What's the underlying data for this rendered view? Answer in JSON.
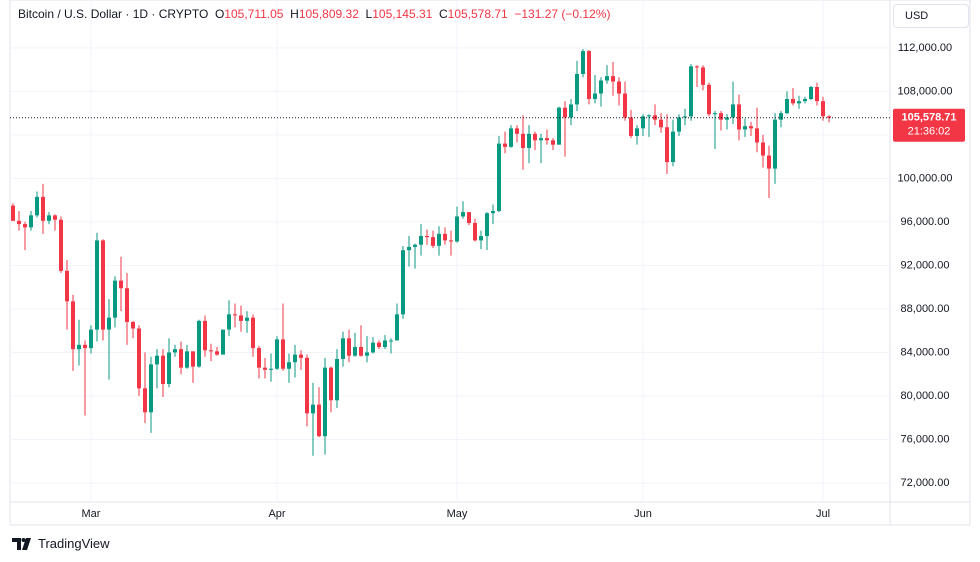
{
  "chart_data": {
    "type": "candlestick",
    "title": "Bitcoin / U.S. Dollar · 1D · CRYPTO",
    "ohlc_header": [
      {
        "label": "O",
        "value": "105,711.05"
      },
      {
        "label": "H",
        "value": "105,809.32"
      },
      {
        "label": "L",
        "value": "105,145.31"
      },
      {
        "label": "C",
        "value": "105,578.71"
      }
    ],
    "change": "−131.27 (−0.12%)",
    "currency": "USD",
    "last_price": {
      "value": 105578.71,
      "label": "105,578.71"
    },
    "countdown": "21:36:02",
    "up_color": "#089981",
    "down_color": "#f23645",
    "grid": true,
    "ylim": [
      70250,
      116400
    ],
    "yticks": [
      {
        "value": 72000,
        "label": "72,000.00"
      },
      {
        "value": 76000,
        "label": "76,000.00"
      },
      {
        "value": 80000,
        "label": "80,000.00"
      },
      {
        "value": 84000,
        "label": "84,000.00"
      },
      {
        "value": 88000,
        "label": "88,000.00"
      },
      {
        "value": 92000,
        "label": "92,000.00"
      },
      {
        "value": 96000,
        "label": "96,000.00"
      },
      {
        "value": 100000,
        "label": "100,000.00"
      },
      {
        "value": 104000,
        "label": "104,000.00"
      },
      {
        "value": 108000,
        "label": "108,000.00"
      },
      {
        "value": 112000,
        "label": "112,000.00"
      }
    ],
    "categories": [
      null,
      null,
      null,
      null,
      null,
      null,
      null,
      null,
      null,
      null,
      null,
      null,
      null,
      "Mar",
      null,
      null,
      null,
      null,
      null,
      null,
      null,
      null,
      null,
      null,
      null,
      null,
      null,
      null,
      null,
      null,
      null,
      null,
      null,
      null,
      null,
      null,
      null,
      null,
      null,
      null,
      null,
      null,
      null,
      null,
      "Apr",
      null,
      null,
      null,
      null,
      null,
      null,
      null,
      null,
      null,
      null,
      null,
      null,
      null,
      null,
      null,
      null,
      null,
      null,
      null,
      null,
      null,
      null,
      null,
      null,
      null,
      null,
      null,
      null,
      null,
      "May",
      null,
      null,
      null,
      null,
      null,
      null,
      null,
      null,
      null,
      null,
      null,
      null,
      null,
      null,
      null,
      null,
      null,
      null,
      null,
      null,
      null,
      null,
      null,
      null,
      null,
      null,
      null,
      null,
      null,
      null,
      "Jun",
      null,
      null,
      null,
      null,
      null,
      null,
      null,
      null,
      null,
      null,
      null,
      null,
      null,
      null,
      null,
      null,
      null,
      null,
      null,
      null,
      null,
      null,
      null,
      null,
      null,
      null,
      null,
      null,
      null,
      "Jul",
      null
    ],
    "open": [
      97500,
      96100,
      95800,
      95500,
      96600,
      98300,
      96100,
      96600,
      96200,
      91500,
      88700,
      84300,
      84700,
      84400,
      86100,
      94300,
      86100,
      87200,
      90600,
      89900,
      86800,
      86200,
      80700,
      78500,
      82900,
      83700,
      81100,
      84000,
      84300,
      82600,
      84100,
      82700,
      86900,
      84200,
      84100,
      83800,
      86100,
      87500,
      87400,
      86900,
      87200,
      84400,
      82600,
      82400,
      82500,
      85200,
      82500,
      83100,
      83800,
      83500,
      78400,
      79200,
      76300,
      82600,
      79600,
      83400,
      85300,
      83700,
      84500,
      83700,
      84000,
      84900,
      84500,
      85100,
      85100,
      87500,
      93400,
      93700,
      93900,
      94700,
      94600,
      93800,
      94900,
      94300,
      94200,
      96500,
      96900,
      95900,
      94300,
      94700,
      96800,
      97000,
      103200,
      102900,
      104600,
      104100,
      102800,
      104100,
      103500,
      103700,
      103500,
      103100,
      106500,
      105600,
      106800,
      109600,
      111700,
      107300,
      107800,
      109000,
      109400,
      108900,
      107800,
      105600,
      103900,
      104600,
      105700,
      105800,
      105400,
      104700,
      101500,
      104300,
      105600,
      105700,
      110300,
      110200,
      108600,
      105900,
      106000,
      105400,
      105600,
      106800,
      104500,
      104800,
      104600,
      103300,
      102100,
      100900,
      105400,
      106000,
      107300,
      106900,
      107100,
      107300,
      108400,
      107100,
      105711.05
    ],
    "high": [
      97700,
      97000,
      96000,
      97000,
      98800,
      99500,
      96900,
      96700,
      96500,
      92500,
      89300,
      87000,
      85100,
      86500,
      95000,
      94400,
      88900,
      91000,
      92800,
      91300,
      86900,
      86500,
      84000,
      83600,
      84300,
      84300,
      85300,
      84700,
      85000,
      84700,
      84100,
      87000,
      87400,
      84800,
      84500,
      86100,
      88800,
      88500,
      88300,
      87800,
      87500,
      84600,
      83500,
      83900,
      85500,
      88500,
      83900,
      84700,
      84200,
      83800,
      81200,
      80800,
      83500,
      82700,
      84300,
      85900,
      86100,
      85800,
      86500,
      85500,
      85400,
      85100,
      85600,
      85300,
      88500,
      93800,
      94700,
      94000,
      95800,
      95300,
      95200,
      95600,
      95500,
      95200,
      97400,
      97900,
      96900,
      96300,
      95200,
      96900,
      97600,
      103900,
      104300,
      104900,
      104900,
      105800,
      104900,
      104300,
      104100,
      104500,
      103700,
      106600,
      107100,
      107300,
      110800,
      111900,
      111800,
      109500,
      109300,
      110400,
      110700,
      109300,
      108900,
      106300,
      104900,
      105900,
      105900,
      106800,
      106000,
      105900,
      105400,
      105900,
      106400,
      110500,
      110400,
      110400,
      108800,
      106200,
      106200,
      105900,
      108900,
      107700,
      105500,
      105200,
      106500,
      104000,
      103000,
      106000,
      106200,
      108000,
      108300,
      107600,
      107500,
      108500,
      108800,
      107500,
      105809.32
    ],
    "low": [
      96100,
      95200,
      93400,
      95200,
      96400,
      94900,
      95800,
      95200,
      91300,
      86100,
      82300,
      82800,
      78200,
      83900,
      85000,
      85100,
      81500,
      86300,
      87800,
      84700,
      85300,
      80000,
      77500,
      76600,
      80700,
      79900,
      80800,
      83600,
      82000,
      82500,
      81200,
      82600,
      83600,
      83200,
      83700,
      83800,
      85500,
      86300,
      85900,
      85800,
      83600,
      81600,
      81600,
      81300,
      82400,
      82300,
      81200,
      81700,
      82400,
      77200,
      74500,
      76200,
      74600,
      78500,
      78900,
      82700,
      83100,
      83600,
      83600,
      83100,
      83900,
      84300,
      84300,
      83900,
      85100,
      87100,
      91900,
      91700,
      92900,
      93900,
      93600,
      92900,
      93900,
      92900,
      94100,
      96300,
      95700,
      94200,
      93500,
      93400,
      95800,
      96900,
      102300,
      102800,
      103300,
      100800,
      101400,
      102600,
      101400,
      103100,
      102600,
      103100,
      102000,
      104900,
      106200,
      109300,
      106800,
      106900,
      106600,
      108700,
      107600,
      106700,
      105300,
      103700,
      103100,
      103900,
      103800,
      104900,
      104200,
      100400,
      101100,
      103900,
      104900,
      105300,
      108400,
      108100,
      105700,
      102700,
      104400,
      104500,
      105000,
      103500,
      103800,
      103900,
      102400,
      101000,
      98200,
      99500,
      104700,
      105900,
      106700,
      106400,
      106900,
      107200,
      106700,
      105300,
      105145.31
    ],
    "close": [
      96100,
      95800,
      95500,
      96600,
      98300,
      96100,
      96600,
      96200,
      91500,
      88700,
      84300,
      84700,
      84400,
      86100,
      94300,
      86100,
      87200,
      90600,
      89900,
      86800,
      86200,
      80700,
      78500,
      82900,
      83700,
      81100,
      84000,
      84300,
      82600,
      84100,
      82700,
      86900,
      84200,
      84100,
      83800,
      86100,
      87500,
      87400,
      86900,
      87200,
      84400,
      82600,
      82400,
      82500,
      85200,
      82500,
      83100,
      83800,
      83500,
      78400,
      79200,
      76300,
      82600,
      79600,
      83400,
      85300,
      83700,
      84500,
      83700,
      84000,
      84900,
      84500,
      85100,
      85100,
      87500,
      93400,
      93700,
      93900,
      94700,
      94600,
      93800,
      94900,
      94300,
      94200,
      96500,
      96900,
      95900,
      94300,
      94700,
      96800,
      97000,
      103200,
      102900,
      104600,
      104100,
      102800,
      104100,
      103500,
      103700,
      103500,
      103100,
      106500,
      105600,
      106800,
      109600,
      111700,
      107300,
      107800,
      109000,
      109400,
      108900,
      107800,
      105600,
      103900,
      104600,
      105700,
      105800,
      105400,
      104700,
      101500,
      104300,
      105600,
      105700,
      110300,
      110200,
      108600,
      105900,
      106000,
      105400,
      105600,
      106800,
      104500,
      104800,
      104600,
      103300,
      102100,
      100900,
      105400,
      106000,
      107300,
      106900,
      107100,
      107300,
      108400,
      107100,
      105711.05,
      105578.71
    ]
  },
  "brand": "TradingView"
}
